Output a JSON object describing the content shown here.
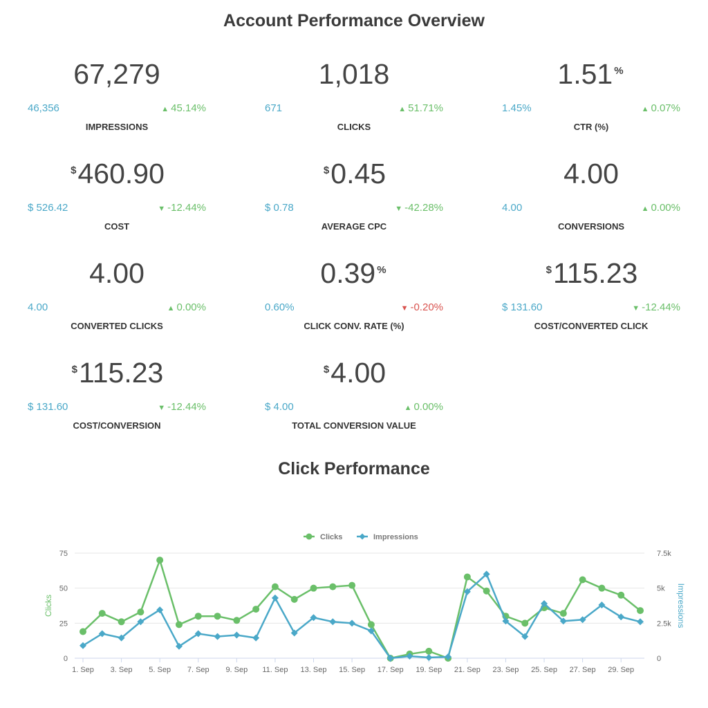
{
  "header": {
    "title": "Account Performance Overview"
  },
  "metrics": [
    {
      "value": "67,279",
      "prefix": "",
      "suffix": "",
      "compare": "46,356",
      "change": "45.14%",
      "direction": "up",
      "change_color": "#6abf69",
      "label": "IMPRESSIONS"
    },
    {
      "value": "1,018",
      "prefix": "",
      "suffix": "",
      "compare": "671",
      "change": "51.71%",
      "direction": "up",
      "change_color": "#6abf69",
      "label": "CLICKS"
    },
    {
      "value": "1.51",
      "prefix": "",
      "suffix": "%",
      "compare": "1.45%",
      "change": "0.07%",
      "direction": "up",
      "change_color": "#6abf69",
      "label": "CTR (%)"
    },
    {
      "value": "460.90",
      "prefix": "$",
      "suffix": "",
      "compare": "$ 526.42",
      "change": "-12.44%",
      "direction": "down",
      "change_color": "#6abf69",
      "label": "COST"
    },
    {
      "value": "0.45",
      "prefix": "$",
      "suffix": "",
      "compare": "$ 0.78",
      "change": "-42.28%",
      "direction": "down",
      "change_color": "#6abf69",
      "label": "AVERAGE CPC"
    },
    {
      "value": "4.00",
      "prefix": "",
      "suffix": "",
      "compare": "4.00",
      "change": "0.00%",
      "direction": "up",
      "change_color": "#6abf69",
      "label": "CONVERSIONS"
    },
    {
      "value": "4.00",
      "prefix": "",
      "suffix": "",
      "compare": "4.00",
      "change": "0.00%",
      "direction": "up",
      "change_color": "#6abf69",
      "label": "CONVERTED CLICKS"
    },
    {
      "value": "0.39",
      "prefix": "",
      "suffix": "%",
      "compare": "0.60%",
      "change": "-0.20%",
      "direction": "down",
      "change_color": "#d9534f",
      "label": "CLICK CONV. RATE (%)"
    },
    {
      "value": "115.23",
      "prefix": "$",
      "suffix": "",
      "compare": "$ 131.60",
      "change": "-12.44%",
      "direction": "down",
      "change_color": "#6abf69",
      "label": "COST/CONVERTED CLICK"
    },
    {
      "value": "115.23",
      "prefix": "$",
      "suffix": "",
      "compare": "$ 131.60",
      "change": "-12.44%",
      "direction": "down",
      "change_color": "#6abf69",
      "label": "COST/CONVERSION"
    },
    {
      "value": "4.00",
      "prefix": "$",
      "suffix": "",
      "compare": "$ 4.00",
      "change": "0.00%",
      "direction": "up",
      "change_color": "#6abf69",
      "label": "TOTAL CONVERSION VALUE"
    }
  ],
  "colors": {
    "compare": "#4aa8c8",
    "positive": "#6abf69",
    "negative": "#d9534f"
  },
  "chart_section": {
    "title": "Click Performance"
  },
  "chart_data": {
    "type": "line",
    "x": [
      "1. Sep",
      "2. Sep",
      "3. Sep",
      "4. Sep",
      "5. Sep",
      "6. Sep",
      "7. Sep",
      "8. Sep",
      "9. Sep",
      "10. Sep",
      "11. Sep",
      "12. Sep",
      "13. Sep",
      "14. Sep",
      "15. Sep",
      "16. Sep",
      "17. Sep",
      "18. Sep",
      "19. Sep",
      "20. Sep",
      "21. Sep",
      "22. Sep",
      "23. Sep",
      "24. Sep",
      "25. Sep",
      "26. Sep",
      "27. Sep",
      "28. Sep",
      "29. Sep",
      "30. Sep"
    ],
    "x_tick_labels": [
      "1. Sep",
      "3. Sep",
      "5. Sep",
      "7. Sep",
      "9. Sep",
      "11. Sep",
      "13. Sep",
      "15. Sep",
      "17. Sep",
      "19. Sep",
      "21. Sep",
      "23. Sep",
      "25. Sep",
      "27. Sep",
      "29. Sep"
    ],
    "series": [
      {
        "name": "Clicks",
        "axis": "left",
        "color": "#6abf69",
        "marker": "circle",
        "values": [
          19,
          32,
          26,
          33,
          70,
          24,
          30,
          30,
          27,
          35,
          51,
          42,
          50,
          51,
          52,
          24,
          0,
          3,
          5,
          0,
          58,
          48,
          30,
          25,
          36,
          32,
          56,
          50,
          45,
          34
        ]
      },
      {
        "name": "Impressions",
        "axis": "right",
        "color": "#4aa8c8",
        "marker": "diamond",
        "values": [
          900,
          1750,
          1450,
          2600,
          3450,
          850,
          1750,
          1550,
          1650,
          1450,
          4300,
          1800,
          2900,
          2600,
          2500,
          1950,
          0,
          150,
          50,
          100,
          4750,
          6000,
          2650,
          1550,
          3900,
          2650,
          2750,
          3800,
          2950,
          2600
        ]
      }
    ],
    "y_left": {
      "label": "Clicks",
      "range": [
        0,
        75
      ],
      "ticks": [
        "0",
        "25",
        "50",
        "75"
      ]
    },
    "y_right": {
      "label": "Impressions",
      "range": [
        0,
        7500
      ],
      "ticks": [
        "0",
        "2.5k",
        "5k",
        "7.5k"
      ]
    },
    "grid": true,
    "legend": "top-center"
  }
}
